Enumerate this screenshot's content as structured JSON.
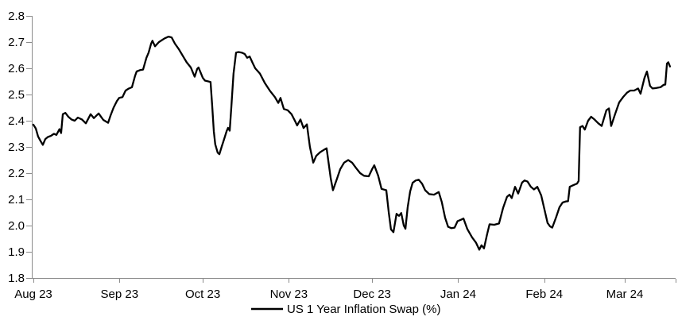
{
  "chart_data": {
    "type": "line",
    "title": "",
    "x_unit": "days since 2023-08-01",
    "x_tick_labels": [
      "Aug 23",
      "Sep 23",
      "Oct 23",
      "Nov 23",
      "Dec 23",
      "Jan 24",
      "Feb 24",
      "Mar 24"
    ],
    "x_tick_days": [
      0,
      31,
      61,
      92,
      122,
      153,
      184,
      213
    ],
    "x_axis_end_day": 231.3,
    "y_ticks": [
      1.8,
      1.9,
      2.0,
      2.1,
      2.2,
      2.3,
      2.4,
      2.5,
      2.6,
      2.7,
      2.8
    ],
    "ylim": [
      1.8,
      2.8
    ],
    "grid": false,
    "legend_position": "bottom-center",
    "background": "#ffffff",
    "axis_color": "#8c8c8c",
    "text_color": "#000000",
    "series": [
      {
        "name": "US 1 Year Inflation Swap (%)",
        "color": "#000000",
        "points": [
          [
            0,
            2.385
          ],
          [
            0.9,
            2.37
          ],
          [
            1.7,
            2.34
          ],
          [
            2.6,
            2.322
          ],
          [
            3.4,
            2.308
          ],
          [
            4.3,
            2.33
          ],
          [
            5.2,
            2.338
          ],
          [
            6.3,
            2.342
          ],
          [
            7.4,
            2.35
          ],
          [
            8.3,
            2.346
          ],
          [
            9.4,
            2.368
          ],
          [
            10,
            2.353
          ],
          [
            10.6,
            2.425
          ],
          [
            11.5,
            2.43
          ],
          [
            12.6,
            2.415
          ],
          [
            13.7,
            2.405
          ],
          [
            14.9,
            2.4
          ],
          [
            16,
            2.412
          ],
          [
            17.5,
            2.405
          ],
          [
            18.9,
            2.39
          ],
          [
            20.6,
            2.425
          ],
          [
            21.8,
            2.41
          ],
          [
            23.5,
            2.428
          ],
          [
            25.2,
            2.403
          ],
          [
            26.9,
            2.392
          ],
          [
            27.8,
            2.42
          ],
          [
            28.9,
            2.45
          ],
          [
            30.1,
            2.475
          ],
          [
            30.9,
            2.487
          ],
          [
            32.1,
            2.49
          ],
          [
            33.2,
            2.515
          ],
          [
            34.4,
            2.523
          ],
          [
            35.5,
            2.528
          ],
          [
            36.6,
            2.57
          ],
          [
            37.2,
            2.588
          ],
          [
            38.4,
            2.593
          ],
          [
            39.5,
            2.595
          ],
          [
            40.7,
            2.64
          ],
          [
            41.5,
            2.66
          ],
          [
            42.4,
            2.694
          ],
          [
            42.9,
            2.705
          ],
          [
            43.8,
            2.684
          ],
          [
            45.2,
            2.7
          ],
          [
            47.2,
            2.714
          ],
          [
            48.7,
            2.721
          ],
          [
            49.8,
            2.718
          ],
          [
            51,
            2.694
          ],
          [
            52.4,
            2.673
          ],
          [
            53.8,
            2.648
          ],
          [
            55.2,
            2.623
          ],
          [
            56.7,
            2.603
          ],
          [
            57.5,
            2.583
          ],
          [
            58.1,
            2.568
          ],
          [
            59,
            2.598
          ],
          [
            59.5,
            2.603
          ],
          [
            61,
            2.564
          ],
          [
            61.8,
            2.553
          ],
          [
            63,
            2.55
          ],
          [
            63.8,
            2.548
          ],
          [
            64.4,
            2.46
          ],
          [
            65,
            2.36
          ],
          [
            65.5,
            2.31
          ],
          [
            66.4,
            2.278
          ],
          [
            67,
            2.272
          ],
          [
            67.8,
            2.3
          ],
          [
            68.7,
            2.33
          ],
          [
            69.6,
            2.36
          ],
          [
            70.1,
            2.373
          ],
          [
            70.7,
            2.362
          ],
          [
            71.3,
            2.45
          ],
          [
            72.1,
            2.58
          ],
          [
            73,
            2.66
          ],
          [
            73.9,
            2.662
          ],
          [
            75,
            2.66
          ],
          [
            76.1,
            2.655
          ],
          [
            77,
            2.64
          ],
          [
            77.9,
            2.645
          ],
          [
            79,
            2.62
          ],
          [
            79.9,
            2.6
          ],
          [
            81.6,
            2.58
          ],
          [
            83.3,
            2.545
          ],
          [
            85.3,
            2.513
          ],
          [
            87,
            2.49
          ],
          [
            88.2,
            2.468
          ],
          [
            89,
            2.487
          ],
          [
            90.2,
            2.445
          ],
          [
            91.6,
            2.44
          ],
          [
            93,
            2.425
          ],
          [
            94.2,
            2.4
          ],
          [
            95,
            2.382
          ],
          [
            96.2,
            2.405
          ],
          [
            97.3,
            2.372
          ],
          [
            98.5,
            2.386
          ],
          [
            99.6,
            2.3
          ],
          [
            100.8,
            2.24
          ],
          [
            101.9,
            2.266
          ],
          [
            103.3,
            2.28
          ],
          [
            104.8,
            2.29
          ],
          [
            105.6,
            2.295
          ],
          [
            107.1,
            2.18
          ],
          [
            107.9,
            2.135
          ],
          [
            109.4,
            2.18
          ],
          [
            110.5,
            2.215
          ],
          [
            111.9,
            2.24
          ],
          [
            113.4,
            2.25
          ],
          [
            114.8,
            2.24
          ],
          [
            116.2,
            2.22
          ],
          [
            117.7,
            2.2
          ],
          [
            119.1,
            2.19
          ],
          [
            120.8,
            2.188
          ],
          [
            122,
            2.215
          ],
          [
            122.8,
            2.23
          ],
          [
            124.2,
            2.19
          ],
          [
            125.4,
            2.14
          ],
          [
            127.1,
            2.135
          ],
          [
            128,
            2.05
          ],
          [
            128.8,
            1.985
          ],
          [
            129.7,
            1.975
          ],
          [
            130.8,
            2.045
          ],
          [
            131.7,
            2.037
          ],
          [
            132.5,
            2.048
          ],
          [
            133.4,
            2.0
          ],
          [
            134,
            1.988
          ],
          [
            134.8,
            2.07
          ],
          [
            135.7,
            2.13
          ],
          [
            136.6,
            2.163
          ],
          [
            137.7,
            2.172
          ],
          [
            138.8,
            2.175
          ],
          [
            140,
            2.16
          ],
          [
            141.1,
            2.135
          ],
          [
            142.6,
            2.12
          ],
          [
            144.3,
            2.118
          ],
          [
            146,
            2.128
          ],
          [
            147.1,
            2.09
          ],
          [
            148.3,
            2.03
          ],
          [
            149.4,
            1.995
          ],
          [
            150.6,
            1.99
          ],
          [
            151.7,
            1.992
          ],
          [
            152.8,
            2.017
          ],
          [
            154,
            2.022
          ],
          [
            154.9,
            2.027
          ],
          [
            156.3,
            1.987
          ],
          [
            158,
            1.955
          ],
          [
            159.4,
            1.935
          ],
          [
            160.6,
            1.908
          ],
          [
            161.4,
            1.925
          ],
          [
            162.3,
            1.913
          ],
          [
            163.4,
            1.965
          ],
          [
            164.3,
            2.005
          ],
          [
            166,
            2.003
          ],
          [
            167.7,
            2.008
          ],
          [
            169.2,
            2.068
          ],
          [
            170.6,
            2.11
          ],
          [
            171.5,
            2.118
          ],
          [
            172.3,
            2.105
          ],
          [
            173.5,
            2.148
          ],
          [
            174.6,
            2.122
          ],
          [
            176,
            2.164
          ],
          [
            176.9,
            2.172
          ],
          [
            178,
            2.168
          ],
          [
            179.2,
            2.148
          ],
          [
            180.3,
            2.138
          ],
          [
            181.5,
            2.148
          ],
          [
            182.9,
            2.115
          ],
          [
            184.1,
            2.06
          ],
          [
            185.2,
            2.01
          ],
          [
            186.1,
            1.997
          ],
          [
            186.9,
            1.992
          ],
          [
            188.3,
            2.032
          ],
          [
            189.5,
            2.07
          ],
          [
            190.6,
            2.088
          ],
          [
            191.8,
            2.092
          ],
          [
            192.6,
            2.093
          ],
          [
            193.2,
            2.148
          ],
          [
            194.6,
            2.155
          ],
          [
            195.8,
            2.16
          ],
          [
            196.4,
            2.17
          ],
          [
            196.9,
            2.375
          ],
          [
            197.8,
            2.38
          ],
          [
            198.6,
            2.366
          ],
          [
            199.8,
            2.4
          ],
          [
            200.9,
            2.415
          ],
          [
            202.1,
            2.405
          ],
          [
            203.5,
            2.39
          ],
          [
            204.7,
            2.38
          ],
          [
            206.4,
            2.44
          ],
          [
            207.3,
            2.447
          ],
          [
            208.1,
            2.38
          ],
          [
            209.5,
            2.425
          ],
          [
            211,
            2.47
          ],
          [
            212.4,
            2.49
          ],
          [
            213.8,
            2.507
          ],
          [
            215,
            2.515
          ],
          [
            216.4,
            2.515
          ],
          [
            217.8,
            2.523
          ],
          [
            218.7,
            2.503
          ],
          [
            220.1,
            2.563
          ],
          [
            221,
            2.588
          ],
          [
            222.1,
            2.533
          ],
          [
            223,
            2.523
          ],
          [
            224.4,
            2.525
          ],
          [
            225.9,
            2.528
          ],
          [
            227,
            2.537
          ],
          [
            227.6,
            2.538
          ],
          [
            228.2,
            2.618
          ],
          [
            228.7,
            2.623
          ],
          [
            229.3,
            2.607
          ]
        ]
      }
    ]
  }
}
